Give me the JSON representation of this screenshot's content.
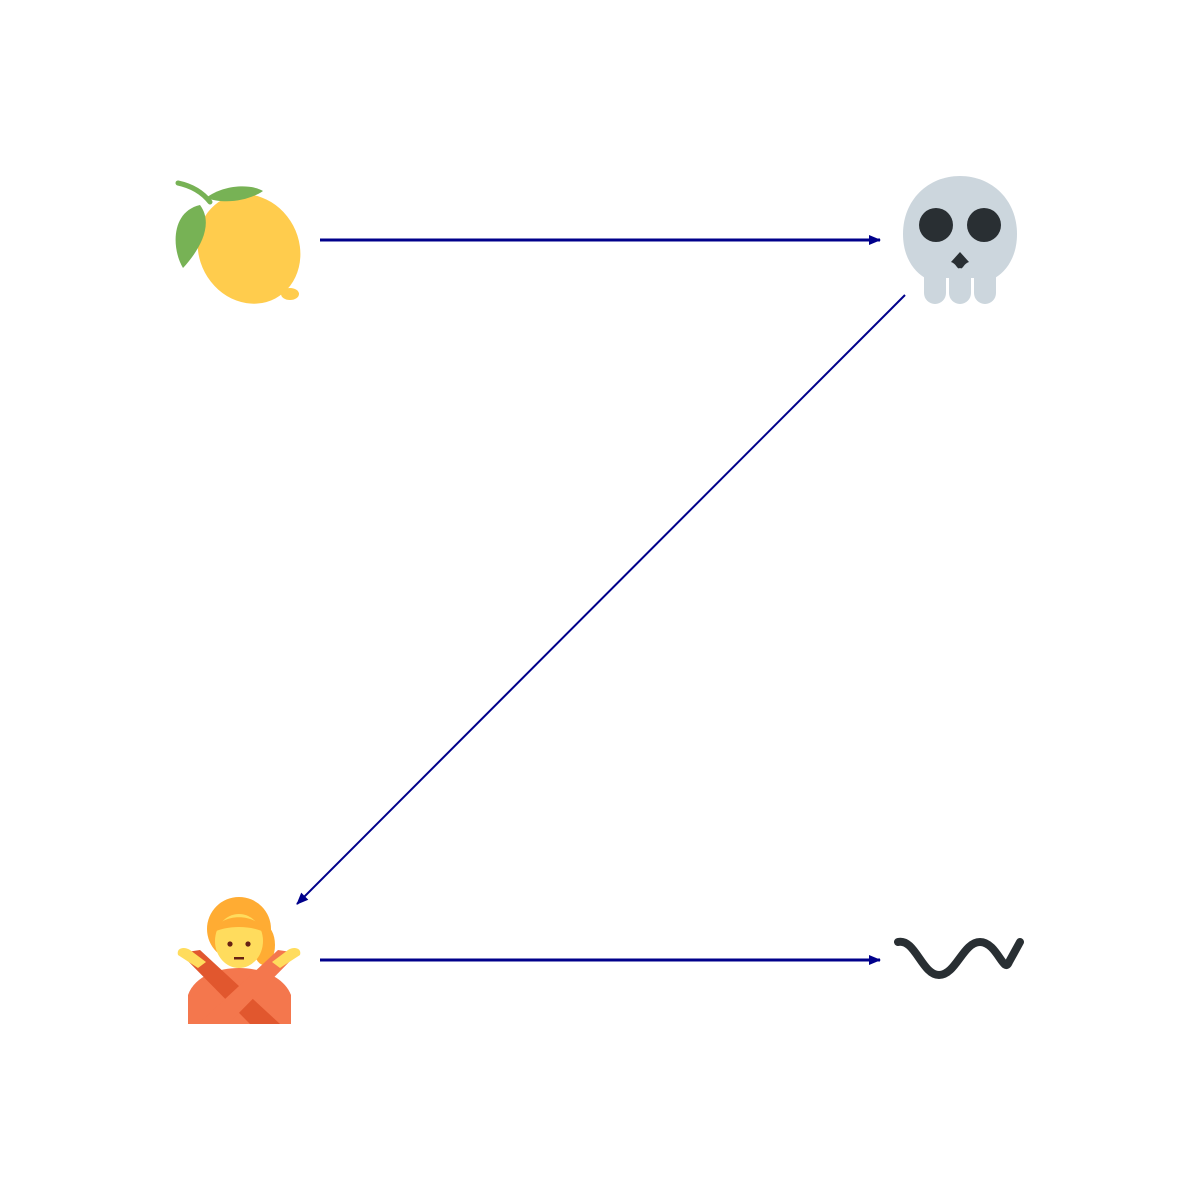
{
  "diagram": {
    "nodes": [
      {
        "id": "lemon",
        "icon": "lemon-icon"
      },
      {
        "id": "skull",
        "icon": "skull-icon"
      },
      {
        "id": "person-gesturing-no",
        "icon": "person-gesturing-no-icon"
      },
      {
        "id": "wavy-dash",
        "icon": "wavy-dash-icon"
      }
    ],
    "edges": [
      {
        "from": "lemon",
        "to": "skull"
      },
      {
        "from": "skull",
        "to": "person-gesturing-no"
      },
      {
        "from": "person-gesturing-no",
        "to": "wavy-dash"
      }
    ],
    "colors": {
      "arrow": "#00008b",
      "background": "#ffffff",
      "lemon": "#ffcc4d",
      "leaf": "#77b255",
      "skull": "#ccd6dd",
      "skull_dark": "#292f33",
      "hair": "#ffac33",
      "skin": "#ffdc5d",
      "shirt": "#f4774d",
      "shirt_dark": "#e1572e",
      "wavy": "#292f33"
    }
  }
}
